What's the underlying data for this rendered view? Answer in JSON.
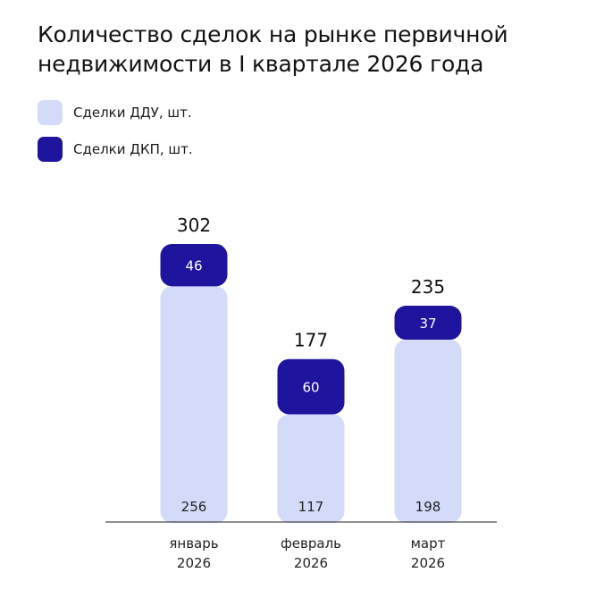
{
  "title": {
    "line1": "Количество сделок на рынке первичной",
    "line2": "недвижимости в I квартале 2026 года"
  },
  "legend": [
    {
      "label": "Сделки ДДУ, шт.",
      "color": "#d3dbf9"
    },
    {
      "label": "Сделки ДКП, шт.",
      "color": "#1f149e"
    }
  ],
  "colors": {
    "ddu": "#d3dbf9",
    "dkp": "#1f149e",
    "axis": "#222222",
    "label_dark": "#222222",
    "label_light": "#ffffff"
  },
  "chart_data": {
    "type": "bar",
    "stacked": true,
    "categories": [
      [
        "январь",
        "2026"
      ],
      [
        "февраль",
        "2026"
      ],
      [
        "март",
        "2026"
      ]
    ],
    "series": [
      {
        "name": "Сделки ДДУ, шт.",
        "values": [
          256,
          117,
          198
        ]
      },
      {
        "name": "Сделки ДКП, шт.",
        "values": [
          46,
          60,
          37
        ]
      }
    ],
    "totals": [
      302,
      177,
      235
    ],
    "legend_position": "top-left",
    "grid": false
  }
}
